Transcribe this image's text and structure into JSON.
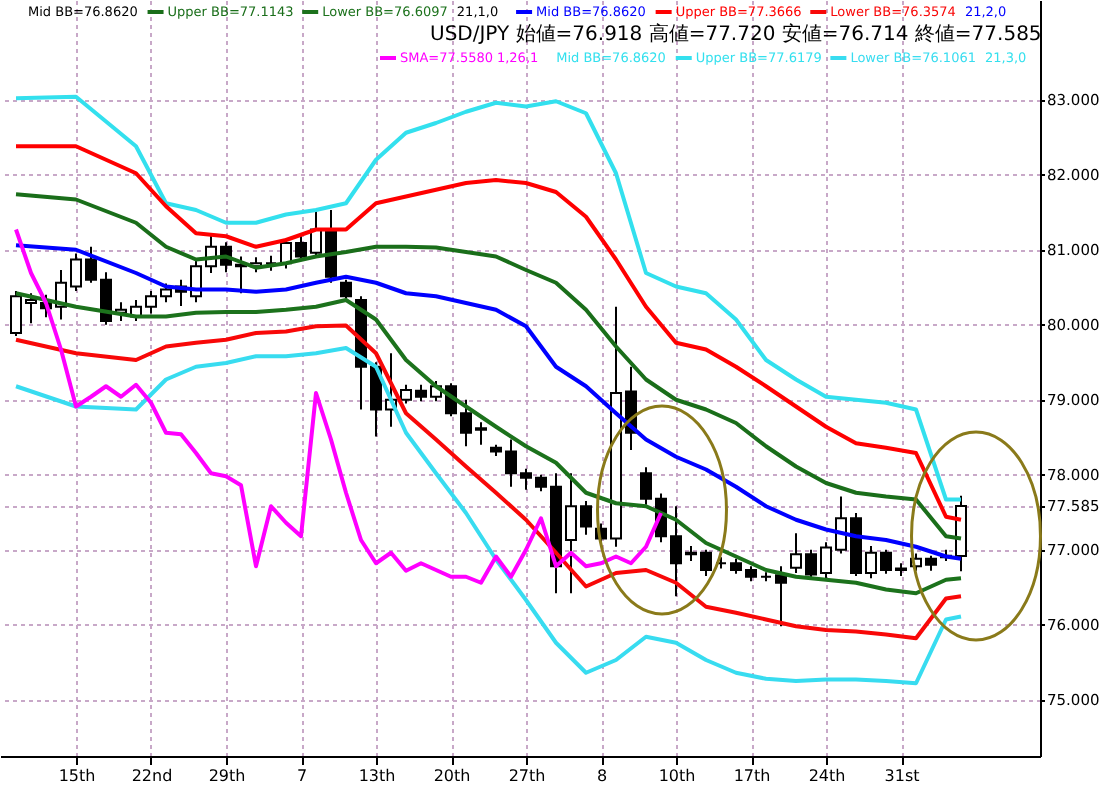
{
  "chart_data": {
    "type": "candlestick",
    "annotations": [
      "Mid BB=76.8620",
      "21,1,0",
      "21,2,0",
      "USD/JPY 始値=76.918 高値=77.720 安値=76.714 終値=77.585",
      "1,26,1",
      "Mid BB=76.8620",
      "21,3,0"
    ],
    "categories": [
      null,
      null,
      null,
      null,
      "15th",
      null,
      null,
      null,
      null,
      "22nd",
      null,
      null,
      null,
      null,
      "29th",
      null,
      null,
      null,
      null,
      "7",
      null,
      null,
      null,
      null,
      "13th",
      null,
      null,
      null,
      null,
      "20th",
      null,
      null,
      null,
      null,
      "27th",
      null,
      null,
      null,
      null,
      "8",
      null,
      null,
      null,
      null,
      "10th",
      null,
      null,
      null,
      null,
      "17th",
      null,
      null,
      null,
      null,
      "24th",
      null,
      null,
      null,
      null,
      "31st",
      null,
      null,
      null,
      null
    ],
    "ohlc": [
      [
        79.89,
        80.45,
        79.85,
        80.38
      ],
      [
        80.29,
        80.42,
        80.02,
        80.33
      ],
      [
        80.29,
        80.4,
        80.1,
        80.22
      ],
      [
        80.24,
        80.73,
        80.07,
        80.56
      ],
      [
        80.51,
        80.95,
        80.45,
        80.87
      ],
      [
        80.87,
        81.04,
        80.56,
        80.6
      ],
      [
        80.6,
        80.7,
        80.0,
        80.05
      ],
      [
        80.16,
        80.3,
        80.05,
        80.2
      ],
      [
        80.11,
        80.33,
        80.05,
        80.24
      ],
      [
        80.24,
        80.45,
        80.15,
        80.38
      ],
      [
        80.38,
        80.55,
        80.3,
        80.47
      ],
      [
        80.51,
        80.6,
        80.25,
        80.44
      ],
      [
        80.38,
        80.85,
        80.3,
        80.78
      ],
      [
        80.78,
        81.22,
        80.69,
        81.04
      ],
      [
        81.04,
        81.1,
        80.7,
        80.8
      ],
      [
        80.8,
        80.91,
        80.42,
        80.78
      ],
      [
        80.78,
        80.9,
        80.7,
        80.82
      ],
      [
        80.82,
        80.92,
        80.72,
        80.82
      ],
      [
        80.82,
        81.15,
        80.75,
        81.09
      ],
      [
        81.09,
        81.18,
        80.85,
        80.91
      ],
      [
        80.96,
        81.53,
        80.9,
        81.27
      ],
      [
        81.24,
        81.53,
        80.56,
        80.64
      ],
      [
        80.56,
        80.6,
        80.33,
        80.38
      ],
      [
        80.33,
        80.38,
        78.87,
        79.44
      ],
      [
        79.44,
        79.5,
        78.51,
        78.87
      ],
      [
        78.87,
        79.62,
        78.64,
        79.0
      ],
      [
        79.0,
        79.2,
        78.95,
        79.13
      ],
      [
        79.12,
        79.2,
        78.98,
        79.04
      ],
      [
        79.04,
        79.25,
        78.98,
        79.18
      ],
      [
        79.18,
        79.22,
        78.78,
        78.82
      ],
      [
        78.82,
        79.0,
        78.38,
        78.56
      ],
      [
        78.6,
        78.7,
        78.4,
        78.62
      ],
      [
        78.36,
        78.4,
        78.25,
        78.31
      ],
      [
        78.31,
        78.47,
        77.84,
        78.02
      ],
      [
        78.02,
        78.08,
        77.8,
        77.96
      ],
      [
        77.96,
        78.0,
        77.78,
        77.84
      ],
      [
        77.84,
        78.02,
        76.42,
        76.78
      ],
      [
        77.13,
        78.02,
        76.42,
        77.58
      ],
      [
        77.58,
        77.65,
        77.2,
        77.31
      ],
      [
        77.28,
        77.35,
        77.05,
        77.15
      ],
      [
        77.15,
        80.24,
        77.04,
        79.09
      ],
      [
        79.11,
        79.44,
        78.33,
        78.56
      ],
      [
        78.02,
        78.1,
        77.6,
        77.68
      ],
      [
        77.68,
        77.75,
        77.1,
        77.18
      ],
      [
        77.18,
        77.58,
        76.38,
        76.82
      ],
      [
        76.96,
        77.05,
        76.85,
        76.94
      ],
      [
        76.96,
        77.0,
        76.65,
        76.73
      ],
      [
        76.82,
        76.9,
        76.75,
        76.82
      ],
      [
        76.82,
        76.88,
        76.68,
        76.73
      ],
      [
        76.73,
        76.78,
        76.58,
        76.64
      ],
      [
        76.64,
        76.7,
        76.58,
        76.64
      ],
      [
        76.66,
        76.78,
        75.98,
        76.56
      ],
      [
        76.76,
        77.22,
        76.69,
        76.94
      ],
      [
        76.94,
        77.0,
        76.6,
        76.67
      ],
      [
        76.69,
        77.1,
        76.62,
        77.03
      ],
      [
        77.0,
        77.71,
        76.95,
        77.42
      ],
      [
        77.42,
        77.49,
        76.65,
        76.69
      ],
      [
        76.69,
        77.05,
        76.62,
        76.96
      ],
      [
        76.96,
        77.0,
        76.68,
        76.73
      ],
      [
        76.73,
        76.82,
        76.65,
        76.75
      ],
      [
        76.78,
        76.95,
        76.72,
        76.88
      ],
      [
        76.88,
        76.92,
        76.72,
        76.8
      ],
      [
        76.9,
        77.0,
        76.85,
        76.92
      ],
      [
        76.918,
        77.72,
        76.714,
        77.585
      ]
    ],
    "series": [
      {
        "name": "Upper BB=77.6179",
        "type": "line",
        "color": "#33e0ee",
        "values": [
          83.02,
          null,
          null,
          null,
          83.04,
          null,
          null,
          null,
          82.38,
          null,
          81.62,
          null,
          81.53,
          null,
          81.36,
          null,
          81.36,
          null,
          81.47,
          null,
          81.53,
          null,
          81.62,
          null,
          82.2,
          null,
          82.56,
          null,
          82.69,
          null,
          82.84,
          null,
          82.96,
          null,
          82.91,
          null,
          82.98,
          null,
          82.82,
          null,
          82.02,
          null,
          80.69,
          null,
          80.51,
          null,
          80.42,
          null,
          80.07,
          null,
          79.53,
          null,
          79.27,
          null,
          79.04,
          null,
          79.0,
          null,
          78.96,
          null,
          78.87,
          null,
          77.67,
          77.67
        ]
      },
      {
        "name": "Upper BB=77.3666",
        "type": "line",
        "color": "#ff0000",
        "values": [
          82.38,
          null,
          null,
          null,
          82.38,
          null,
          null,
          null,
          82.02,
          null,
          81.58,
          null,
          81.22,
          null,
          81.18,
          null,
          81.04,
          null,
          81.13,
          null,
          81.27,
          null,
          81.27,
          null,
          81.62,
          null,
          81.71,
          null,
          81.8,
          null,
          81.89,
          null,
          81.93,
          null,
          81.89,
          null,
          81.77,
          null,
          81.44,
          null,
          80.87,
          null,
          80.24,
          null,
          79.76,
          null,
          79.67,
          null,
          79.44,
          null,
          79.18,
          null,
          78.91,
          null,
          78.64,
          null,
          78.42,
          null,
          78.36,
          null,
          78.29,
          null,
          77.44,
          77.4
        ]
      },
      {
        "name": "Upper BB=77.1143",
        "type": "line",
        "color": "#1a6e1a",
        "values": [
          81.74,
          null,
          null,
          null,
          81.67,
          null,
          null,
          null,
          81.36,
          null,
          81.04,
          null,
          80.87,
          null,
          80.91,
          null,
          80.76,
          null,
          80.82,
          null,
          80.91,
          null,
          80.97,
          null,
          81.04,
          null,
          81.04,
          null,
          81.03,
          null,
          80.97,
          null,
          80.91,
          null,
          80.73,
          null,
          80.56,
          null,
          80.2,
          null,
          79.71,
          null,
          79.27,
          null,
          79.0,
          null,
          78.87,
          null,
          78.69,
          null,
          78.38,
          null,
          78.11,
          null,
          77.89,
          null,
          77.76,
          null,
          77.71,
          null,
          77.67,
          null,
          77.18,
          77.15
        ]
      },
      {
        "name": "Mid BB=76.8620",
        "type": "line",
        "color": "#0000ff",
        "values": [
          81.06,
          null,
          null,
          null,
          81.0,
          null,
          null,
          null,
          80.69,
          null,
          80.51,
          null,
          80.47,
          null,
          80.47,
          null,
          80.44,
          null,
          80.47,
          null,
          80.56,
          null,
          80.64,
          null,
          80.56,
          null,
          80.42,
          null,
          80.38,
          null,
          80.29,
          null,
          80.2,
          null,
          79.98,
          null,
          79.44,
          null,
          79.18,
          null,
          78.82,
          null,
          78.47,
          null,
          78.24,
          null,
          78.07,
          null,
          77.84,
          null,
          77.58,
          null,
          77.4,
          null,
          77.27,
          null,
          77.18,
          null,
          77.13,
          null,
          77.04,
          null,
          76.91,
          76.88
        ]
      },
      {
        "name": "Lower BB=76.6097",
        "type": "line",
        "color": "#1c721c",
        "values": [
          80.42,
          null,
          null,
          null,
          80.24,
          null,
          null,
          null,
          80.11,
          null,
          80.11,
          null,
          80.16,
          null,
          80.17,
          null,
          80.17,
          null,
          80.2,
          null,
          80.24,
          null,
          80.33,
          null,
          80.07,
          null,
          79.53,
          null,
          79.18,
          null,
          78.91,
          null,
          78.64,
          null,
          78.38,
          null,
          78.16,
          null,
          77.76,
          null,
          77.62,
          null,
          77.58,
          null,
          77.4,
          null,
          77.09,
          null,
          76.91,
          null,
          76.73,
          null,
          76.64,
          null,
          76.6,
          null,
          76.56,
          null,
          76.47,
          null,
          76.42,
          null,
          76.6,
          76.62
        ]
      },
      {
        "name": "Lower BB=76.3574",
        "type": "line",
        "color": "#f80808",
        "values": [
          79.8,
          null,
          null,
          null,
          79.62,
          null,
          null,
          null,
          79.53,
          null,
          79.71,
          null,
          79.76,
          null,
          79.8,
          null,
          79.89,
          null,
          79.91,
          null,
          79.98,
          null,
          79.99,
          null,
          79.62,
          null,
          78.82,
          null,
          78.47,
          null,
          78.11,
          null,
          77.76,
          null,
          77.4,
          null,
          76.96,
          null,
          76.51,
          null,
          76.69,
          null,
          76.73,
          null,
          76.56,
          null,
          76.24,
          null,
          76.16,
          null,
          76.07,
          null,
          75.98,
          null,
          75.93,
          null,
          75.91,
          null,
          75.87,
          null,
          75.82,
          null,
          76.35,
          76.38
        ]
      },
      {
        "name": "Lower BB=76.1061",
        "type": "line",
        "color": "#38dcf0",
        "values": [
          79.18,
          null,
          null,
          null,
          78.91,
          null,
          null,
          null,
          78.87,
          null,
          79.27,
          null,
          79.44,
          null,
          79.49,
          null,
          79.58,
          null,
          79.58,
          null,
          79.62,
          null,
          79.69,
          null,
          79.44,
          null,
          78.56,
          null,
          78.02,
          null,
          77.49,
          null,
          76.87,
          null,
          76.33,
          null,
          75.76,
          null,
          75.36,
          null,
          75.53,
          null,
          75.84,
          null,
          75.76,
          null,
          75.53,
          null,
          75.36,
          null,
          75.28,
          null,
          75.25,
          null,
          75.27,
          null,
          75.27,
          null,
          75.25,
          null,
          75.22,
          null,
          76.07,
          76.11
        ]
      },
      {
        "name": "SMA=77.5580",
        "type": "line",
        "color": "#ff00ff",
        "values": [
          81.27,
          80.69,
          80.29,
          79.67,
          78.91,
          79.04,
          79.18,
          79.04,
          79.2,
          78.96,
          78.56,
          78.54,
          78.29,
          78.02,
          77.98,
          77.86,
          76.78,
          77.58,
          77.36,
          77.18,
          79.09,
          78.47,
          77.76,
          77.13,
          76.82,
          76.96,
          76.72,
          76.82,
          76.73,
          76.64,
          76.64,
          76.56,
          76.91,
          76.64,
          77.0,
          77.42,
          76.78,
          76.96,
          76.78,
          76.82,
          76.91,
          76.82,
          77.04,
          77.49,
          null,
          null,
          null,
          null,
          null,
          null,
          null,
          null,
          null,
          null,
          null,
          null,
          null,
          null,
          null,
          null,
          null,
          null,
          null,
          null
        ]
      }
    ],
    "ylim": [
      74.25,
      84.33
    ],
    "yticks": [
      {
        "value": 75,
        "label": "75.000"
      },
      {
        "value": 76,
        "label": "76.000"
      },
      {
        "value": 77,
        "label": "77.000"
      },
      {
        "value": 77.585,
        "label": "77.585"
      },
      {
        "value": 78,
        "label": "78.000"
      },
      {
        "value": 79,
        "label": "79.000"
      },
      {
        "value": 80,
        "label": "80.000"
      },
      {
        "value": 81,
        "label": "81.000"
      },
      {
        "value": 82,
        "label": "82.000"
      },
      {
        "value": 83,
        "label": "83.000"
      }
    ],
    "grid": true,
    "legend": "top"
  }
}
